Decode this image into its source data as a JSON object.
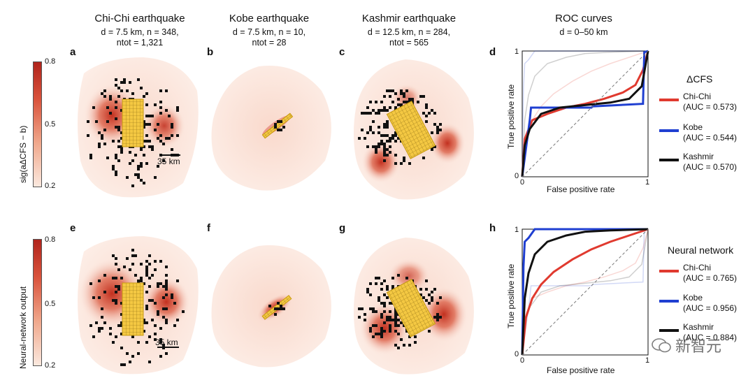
{
  "columns": [
    {
      "title": "Chi-Chi earthquake",
      "line1": "d = 7.5 km, n = 348,",
      "line2": "ntot = 1,321"
    },
    {
      "title": "Kobe earthquake",
      "line1": "d = 7.5 km, n = 10,",
      "line2": "ntot = 28"
    },
    {
      "title": "Kashmir earthquake",
      "line1": "d = 12.5 km, n = 284,",
      "line2": "ntot = 565"
    },
    {
      "title": "ROC curves",
      "line1": "d = 0–50 km",
      "line2": ""
    }
  ],
  "panels": {
    "a": "a",
    "b": "b",
    "c": "c",
    "d": "d",
    "e": "e",
    "f": "f",
    "g": "g",
    "h": "h"
  },
  "colorbars": {
    "top": {
      "label": "sig(aΔCFS − b)",
      "max": "0.8",
      "mid": "0.5",
      "min": "0.2"
    },
    "bottom": {
      "label": "Neural-network output",
      "max": "0.8",
      "mid": "0.5",
      "min": "0.2"
    }
  },
  "scale_bar": {
    "top": "35 km",
    "bottom": "35 km"
  },
  "roc": {
    "xlabel": "False positive rate",
    "ylabel": "True positive rate",
    "tick_0": "0",
    "tick_1": "1",
    "tick_y0": "0",
    "tick_y1": "1"
  },
  "legend_top": {
    "title": "ΔCFS",
    "items": [
      {
        "name": "Chi-Chi",
        "auc": "(AUC = 0.573)",
        "color": "#e03a2f"
      },
      {
        "name": "Kobe",
        "auc": "(AUC = 0.544)",
        "color": "#1f3fd1"
      },
      {
        "name": "Kashmir",
        "auc": "(AUC = 0.570)",
        "color": "#111111"
      }
    ]
  },
  "legend_bottom": {
    "title": "Neural network",
    "items": [
      {
        "name": "Chi-Chi",
        "auc": "(AUC = 0.765)",
        "color": "#e03a2f"
      },
      {
        "name": "Kobe",
        "auc": "(AUC = 0.956)",
        "color": "#1f3fd1"
      },
      {
        "name": "Kashmir",
        "auc": "(AUC = 0.884)",
        "color": "#111111"
      }
    ]
  },
  "watermark": "新智元",
  "chart_data": [
    {
      "type": "line",
      "title": "ROC curves (ΔCFS)",
      "xlabel": "False positive rate",
      "ylabel": "True positive rate",
      "xlim": [
        0,
        1
      ],
      "ylim": [
        0,
        1
      ],
      "series": [
        {
          "name": "Chi-Chi",
          "x": [
            0,
            0.02,
            0.08,
            0.2,
            0.35,
            0.5,
            0.65,
            0.8,
            0.9,
            0.96,
            1
          ],
          "y": [
            0,
            0.3,
            0.45,
            0.5,
            0.55,
            0.58,
            0.62,
            0.67,
            0.73,
            0.85,
            1
          ]
        },
        {
          "name": "Kobe",
          "x": [
            0,
            0.06,
            0.07,
            0.3,
            0.55,
            0.56,
            0.96,
            0.97,
            1
          ],
          "y": [
            0,
            0.45,
            0.55,
            0.55,
            0.55,
            0.56,
            0.58,
            0.99,
            1
          ]
        },
        {
          "name": "Kashmir",
          "x": [
            0,
            0.02,
            0.06,
            0.15,
            0.3,
            0.5,
            0.7,
            0.85,
            0.95,
            1
          ],
          "y": [
            0,
            0.25,
            0.38,
            0.5,
            0.55,
            0.57,
            0.59,
            0.62,
            0.72,
            1
          ]
        },
        {
          "name": "Chance",
          "x": [
            0,
            1
          ],
          "y": [
            0,
            1
          ]
        }
      ]
    },
    {
      "type": "line",
      "title": "ROC curves (Neural network)",
      "xlabel": "False positive rate",
      "ylabel": "True positive rate",
      "xlim": [
        0,
        1
      ],
      "ylim": [
        0,
        1
      ],
      "series": [
        {
          "name": "Chi-Chi",
          "x": [
            0,
            0.03,
            0.08,
            0.15,
            0.25,
            0.4,
            0.55,
            0.7,
            0.85,
            1
          ],
          "y": [
            0,
            0.3,
            0.45,
            0.56,
            0.66,
            0.76,
            0.84,
            0.9,
            0.95,
            1
          ]
        },
        {
          "name": "Kobe",
          "x": [
            0,
            0.01,
            0.02,
            0.05,
            0.1,
            0.3,
            1
          ],
          "y": [
            0,
            0.7,
            0.9,
            0.93,
            1,
            1,
            1
          ]
        },
        {
          "name": "Kashmir",
          "x": [
            0,
            0.02,
            0.05,
            0.1,
            0.2,
            0.35,
            0.5,
            0.7,
            1
          ],
          "y": [
            0,
            0.45,
            0.65,
            0.8,
            0.9,
            0.95,
            0.98,
            0.99,
            1
          ]
        },
        {
          "name": "Chance",
          "x": [
            0,
            1
          ],
          "y": [
            0,
            1
          ]
        }
      ]
    }
  ]
}
